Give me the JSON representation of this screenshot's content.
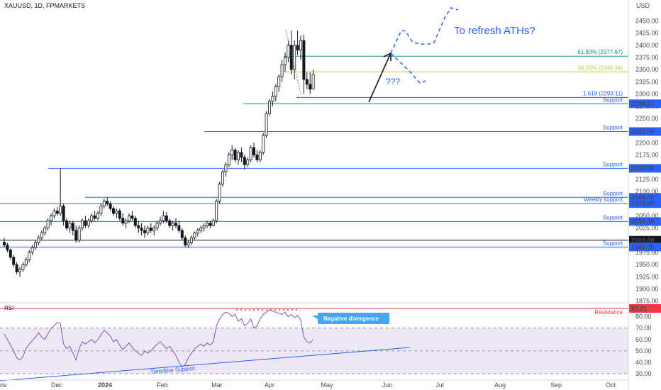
{
  "header": {
    "symbol": "XAUUSD, 1D, FPMARKETS",
    "currency": "USD"
  },
  "colors": {
    "up": "#131722",
    "down": "#131722",
    "support": "#2962ff",
    "fib618": "#089981",
    "fib382": "#c0ca33",
    "resistance": "#f23645",
    "rsi_line": "#7e57c2",
    "rsi_fill": "#ede7f6",
    "annotation": "#2962ff",
    "callout_bg": "#42a5f5"
  },
  "chart_data": [
    {
      "type": "candlestick",
      "symbol": "XAUUSD",
      "timeframe": "1D",
      "ylim": [
        1875,
        2475
      ],
      "y_ticks": [
        1875,
        1900,
        1925,
        1950,
        1975,
        2000,
        2025,
        2050,
        2075,
        2100,
        2125,
        2150,
        2175,
        2200,
        2225,
        2250,
        2275,
        2300,
        2325,
        2350,
        2375,
        2400,
        2425,
        2450
      ],
      "x_ticks": [
        "Dec",
        "2024",
        "Feb",
        "Mar",
        "Apr",
        "May",
        "Jun",
        "Jul",
        "Aug",
        "Sep",
        "Oct"
      ],
      "x_edge_label": "ov",
      "grid": false,
      "candles": [
        [
          1996,
          2005,
          1985,
          1990
        ],
        [
          1990,
          1995,
          1975,
          1980
        ],
        [
          1980,
          1983,
          1960,
          1965
        ],
        [
          1965,
          1970,
          1945,
          1950
        ],
        [
          1950,
          1955,
          1930,
          1935
        ],
        [
          1935,
          1945,
          1925,
          1940
        ],
        [
          1940,
          1955,
          1935,
          1950
        ],
        [
          1950,
          1965,
          1945,
          1960
        ],
        [
          1960,
          1980,
          1955,
          1975
        ],
        [
          1975,
          1990,
          1970,
          1985
        ],
        [
          1985,
          2000,
          1980,
          1995
        ],
        [
          1995,
          2010,
          1990,
          2005
        ],
        [
          2005,
          2020,
          2000,
          2015
        ],
        [
          2015,
          2030,
          2010,
          2025
        ],
        [
          2025,
          2045,
          2020,
          2040
        ],
        [
          2040,
          2055,
          2030,
          2050
        ],
        [
          2050,
          2065,
          2045,
          2060
        ],
        [
          2060,
          2068,
          2050,
          2055
        ],
        [
          2055,
          2147,
          2050,
          2070
        ],
        [
          2070,
          2075,
          2030,
          2040
        ],
        [
          2040,
          2045,
          2020,
          2025
        ],
        [
          2025,
          2040,
          2015,
          2035
        ],
        [
          2035,
          2040,
          2010,
          2020
        ],
        [
          2020,
          2030,
          1995,
          2000
        ],
        [
          2000,
          2030,
          1995,
          2025
        ],
        [
          2025,
          2045,
          2020,
          2040
        ],
        [
          2040,
          2050,
          2025,
          2030
        ],
        [
          2030,
          2045,
          2025,
          2040
        ],
        [
          2040,
          2055,
          2035,
          2050
        ],
        [
          2050,
          2060,
          2040,
          2045
        ],
        [
          2045,
          2060,
          2040,
          2055
        ],
        [
          2055,
          2075,
          2050,
          2070
        ],
        [
          2070,
          2085,
          2065,
          2080
        ],
        [
          2080,
          2088,
          2070,
          2075
        ],
        [
          2075,
          2080,
          2060,
          2065
        ],
        [
          2065,
          2070,
          2050,
          2055
        ],
        [
          2055,
          2065,
          2045,
          2060
        ],
        [
          2060,
          2065,
          2040,
          2045
        ],
        [
          2045,
          2055,
          2030,
          2035
        ],
        [
          2035,
          2045,
          2025,
          2040
        ],
        [
          2040,
          2055,
          2035,
          2050
        ],
        [
          2050,
          2060,
          2040,
          2045
        ],
        [
          2045,
          2050,
          2025,
          2030
        ],
        [
          2030,
          2040,
          2015,
          2025
        ],
        [
          2025,
          2035,
          2010,
          2020
        ],
        [
          2020,
          2030,
          2005,
          2015
        ],
        [
          2015,
          2030,
          2010,
          2025
        ],
        [
          2025,
          2035,
          2015,
          2020
        ],
        [
          2020,
          2030,
          2010,
          2025
        ],
        [
          2025,
          2040,
          2020,
          2035
        ],
        [
          2035,
          2048,
          2030,
          2040
        ],
        [
          2040,
          2060,
          2035,
          2050
        ],
        [
          2050,
          2058,
          2035,
          2040
        ],
        [
          2040,
          2045,
          2025,
          2030
        ],
        [
          2030,
          2040,
          2020,
          2035
        ],
        [
          2035,
          2045,
          2025,
          2030
        ],
        [
          2030,
          2040,
          2015,
          2020
        ],
        [
          2020,
          2025,
          2000,
          2005
        ],
        [
          2005,
          2010,
          1985,
          1990
        ],
        [
          1990,
          2000,
          1984,
          1995
        ],
        [
          1995,
          2010,
          1990,
          2005
        ],
        [
          2005,
          2018,
          2000,
          2015
        ],
        [
          2015,
          2025,
          2008,
          2020
        ],
        [
          2020,
          2030,
          2015,
          2025
        ],
        [
          2025,
          2035,
          2018,
          2030
        ],
        [
          2030,
          2040,
          2025,
          2035
        ],
        [
          2035,
          2040,
          2025,
          2030
        ],
        [
          2030,
          2045,
          2028,
          2040
        ],
        [
          2040,
          2085,
          2035,
          2080
        ],
        [
          2080,
          2120,
          2075,
          2115
        ],
        [
          2115,
          2145,
          2110,
          2140
        ],
        [
          2140,
          2160,
          2130,
          2155
        ],
        [
          2155,
          2180,
          2150,
          2175
        ],
        [
          2175,
          2195,
          2165,
          2185
        ],
        [
          2185,
          2190,
          2160,
          2165
        ],
        [
          2165,
          2185,
          2155,
          2180
        ],
        [
          2180,
          2190,
          2160,
          2170
        ],
        [
          2170,
          2175,
          2145,
          2155
        ],
        [
          2155,
          2170,
          2150,
          2165
        ],
        [
          2165,
          2195,
          2160,
          2190
        ],
        [
          2190,
          2200,
          2170,
          2175
        ],
        [
          2175,
          2185,
          2160,
          2165
        ],
        [
          2165,
          2185,
          2160,
          2180
        ],
        [
          2180,
          2220,
          2175,
          2215
        ],
        [
          2215,
          2265,
          2210,
          2260
        ],
        [
          2260,
          2290,
          2255,
          2285
        ],
        [
          2285,
          2305,
          2275,
          2295
        ],
        [
          2295,
          2320,
          2285,
          2315
        ],
        [
          2315,
          2340,
          2305,
          2335
        ],
        [
          2335,
          2370,
          2325,
          2360
        ],
        [
          2360,
          2385,
          2345,
          2375
        ],
        [
          2375,
          2410,
          2365,
          2400
        ],
        [
          2400,
          2430,
          2340,
          2350
        ],
        [
          2350,
          2410,
          2330,
          2400
        ],
        [
          2400,
          2430,
          2380,
          2390
        ],
        [
          2390,
          2420,
          2370,
          2410
        ],
        [
          2410,
          2422,
          2300,
          2330
        ],
        [
          2330,
          2345,
          2310,
          2320
        ],
        [
          2320,
          2345,
          2300,
          2310
        ],
        [
          2310,
          2350,
          2310,
          2340
        ]
      ],
      "levels": [
        {
          "price": 2280.07,
          "label": "Support"
        },
        {
          "price": 2223.0,
          "label": "Support"
        },
        {
          "price": 2147.5,
          "label": "Support"
        },
        {
          "price": 2088.0,
          "label": "Support"
        },
        {
          "price": 2075.0,
          "label": "Weekly support"
        },
        {
          "price": 2038.39,
          "label": "Support"
        },
        {
          "price": 2000.0,
          "label": ""
        },
        {
          "price": 1986.0,
          "label": "Support"
        }
      ],
      "level_tags": [
        "2280.07",
        "2223.00",
        "2147.50",
        "2088.00",
        "2075.00",
        "2038.39",
        "2000.00",
        "1986.00"
      ],
      "fib_levels": [
        {
          "price": 2377.67,
          "label": "61.80% (2377.67)"
        },
        {
          "price": 2345.34,
          "label": "38.20% (2345.34)"
        },
        {
          "price": 2293.11,
          "label": "1.618 (2293.11)"
        }
      ],
      "annotations": {
        "target": "To refresh ATHs?",
        "question": "???"
      }
    },
    {
      "type": "line",
      "name": "RSI",
      "ylim": [
        25,
        90
      ],
      "y_ticks": [
        30,
        40,
        50,
        60,
        70,
        80
      ],
      "reference_lines": [
        70,
        50,
        30
      ],
      "resistance": {
        "value": 87.21,
        "label": "Resistance",
        "tag": "87.21"
      },
      "callout": "Negative divergence",
      "trendline_label": "Trendline Support",
      "values": [
        65,
        60,
        55,
        50,
        44,
        42,
        45,
        52,
        56,
        59,
        62,
        66,
        62,
        60,
        65,
        70,
        72,
        75,
        74,
        56,
        52,
        54,
        48,
        42,
        52,
        58,
        56,
        58,
        60,
        57,
        60,
        64,
        68,
        66,
        63,
        58,
        60,
        55,
        51,
        54,
        57,
        53,
        50,
        48,
        46,
        50,
        48,
        50,
        53,
        56,
        58,
        55,
        52,
        54,
        50,
        46,
        40,
        36,
        38,
        44,
        48,
        52,
        54,
        56,
        54,
        57,
        55,
        58,
        72,
        78,
        82,
        84,
        83,
        80,
        82,
        76,
        78,
        72,
        74,
        78,
        70,
        72,
        78,
        82,
        84,
        86,
        85,
        84,
        83,
        82,
        84,
        80,
        82,
        79,
        81,
        77,
        62,
        58,
        57,
        60
      ]
    }
  ]
}
